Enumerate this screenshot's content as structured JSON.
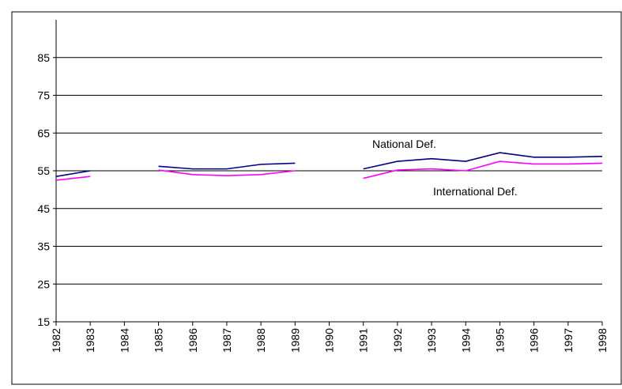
{
  "chart_data": {
    "type": "line",
    "categories": [
      "1982",
      "1983",
      "1984",
      "1985",
      "1986",
      "1987",
      "1988",
      "1989",
      "1990",
      "1991",
      "1992",
      "1993",
      "1994",
      "1995",
      "1996",
      "1997",
      "1998"
    ],
    "series": [
      {
        "name": "National Def.",
        "color": "#000080",
        "values": [
          53.5,
          55,
          null,
          56.2,
          55.5,
          55.5,
          56.7,
          57,
          null,
          55.5,
          57.5,
          58.2,
          57.5,
          59.8,
          58.6,
          58.6,
          58.8
        ]
      },
      {
        "name": "International Def.",
        "color": "#ff00ff",
        "values": [
          52.5,
          53.5,
          null,
          55.2,
          54,
          53.7,
          54,
          55,
          null,
          53,
          55.2,
          55.5,
          55,
          57.5,
          56.8,
          56.8,
          57
        ]
      }
    ],
    "ylim": [
      15,
      95
    ],
    "yticks": [
      15,
      25,
      35,
      45,
      55,
      65,
      75,
      85
    ],
    "grid": true
  }
}
